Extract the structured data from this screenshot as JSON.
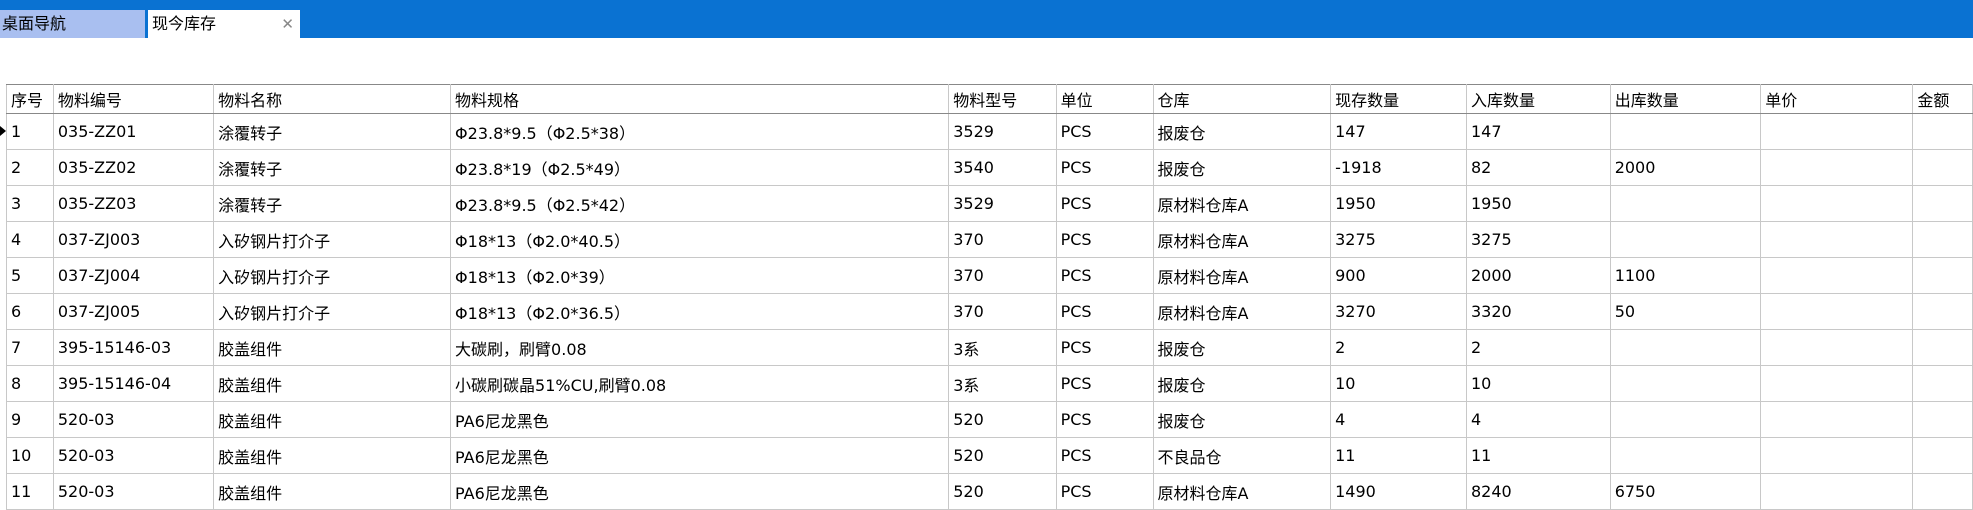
{
  "tabs": [
    "桌面导航",
    "现今库存"
  ],
  "table": {
    "columns": [
      "序号",
      "物料编号",
      "物料名称",
      "物料规格",
      "物料型号",
      "单位",
      "仓库",
      "现存数量",
      "入库数量",
      "出库数量",
      "单价",
      "金额"
    ],
    "rows": [
      [
        1,
        "035-ZZ01",
        "涂覆转子",
        "Φ23.8*9.5（Φ2.5*38）",
        3529,
        "PCS",
        "报废仓",
        147,
        147,
        null,
        null,
        null
      ],
      [
        2,
        "035-ZZ02",
        "涂覆转子",
        "Φ23.8*19（Φ2.5*49）",
        3540,
        "PCS",
        "报废仓",
        -1918,
        82,
        2000,
        null,
        null
      ],
      [
        3,
        "035-ZZ03",
        "涂覆转子",
        "Φ23.8*9.5（Φ2.5*42）",
        3529,
        "PCS",
        "原材料仓库A",
        1950,
        1950,
        null,
        null,
        null
      ],
      [
        4,
        "037-ZJ003",
        "入矽钢片打介子",
        "Φ18*13（Φ2.0*40.5）",
        370,
        "PCS",
        "原材料仓库A",
        3275,
        3275,
        null,
        null,
        null
      ],
      [
        5,
        "037-ZJ004",
        "入矽钢片打介子",
        "Φ18*13（Φ2.0*39）",
        370,
        "PCS",
        "原材料仓库A",
        900,
        2000,
        1100,
        null,
        null
      ],
      [
        6,
        "037-ZJ005",
        "入矽钢片打介子",
        "Φ18*13（Φ2.0*36.5）",
        370,
        "PCS",
        "原材料仓库A",
        3270,
        3320,
        50,
        null,
        null
      ],
      [
        7,
        "395-15146-03",
        "胶盖组件",
        "大碳刷，刷臂0.08",
        "3系",
        "PCS",
        "报废仓",
        2,
        2,
        null,
        null,
        null
      ],
      [
        8,
        "395-15146-04",
        "胶盖组件",
        "小碳刷碳晶51%CU,刷臂0.08",
        "3系",
        "PCS",
        "报废仓",
        10,
        10,
        null,
        null,
        null
      ],
      [
        9,
        "520-03",
        "胶盖组件",
        "PA6尼龙黑色",
        520,
        "PCS",
        "报废仓",
        4,
        4,
        null,
        null,
        null
      ],
      [
        10,
        "520-03",
        "胶盖组件",
        "PA6尼龙黑色",
        520,
        "PCS",
        "不良品仓",
        11,
        11,
        null,
        null,
        null
      ],
      [
        11,
        "520-03",
        "胶盖组件",
        "PA6尼龙黑色",
        520,
        "PCS",
        "原材料仓库A",
        1490,
        8240,
        6750,
        null,
        null
      ]
    ]
  }
}
